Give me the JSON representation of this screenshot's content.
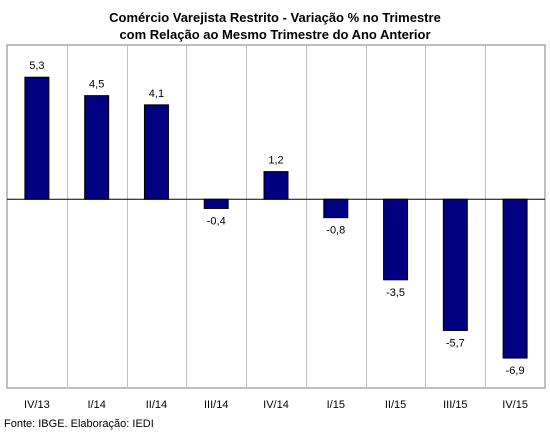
{
  "chart_data": {
    "type": "bar",
    "title": "Comércio Varejista Restrito - Variação % no Trimestre",
    "subtitle": "com Relação ao Mesmo Trimestre do Ano Anterior",
    "categories": [
      "IV/13",
      "I/14",
      "II/14",
      "III/14",
      "IV/14",
      "I/15",
      "II/15",
      "III/15",
      "IV/15"
    ],
    "values": [
      5.3,
      4.5,
      4.1,
      -0.4,
      1.2,
      -0.8,
      -3.5,
      -5.7,
      -6.9
    ],
    "value_labels": [
      "5,3",
      "4,5",
      "4,1",
      "-0,4",
      "1,2",
      "-0,8",
      "-3,5",
      "-5,7",
      "-6,9"
    ],
    "xlabel": "",
    "ylabel": "",
    "ylim": [
      -8.2,
      6.7
    ],
    "grid": "vertical",
    "legend": "none",
    "bar_color": "#000080",
    "gridline_color": "#c0c0c0"
  },
  "footer": {
    "source": "Fonte: IBGE. Elaboração: IEDI"
  }
}
